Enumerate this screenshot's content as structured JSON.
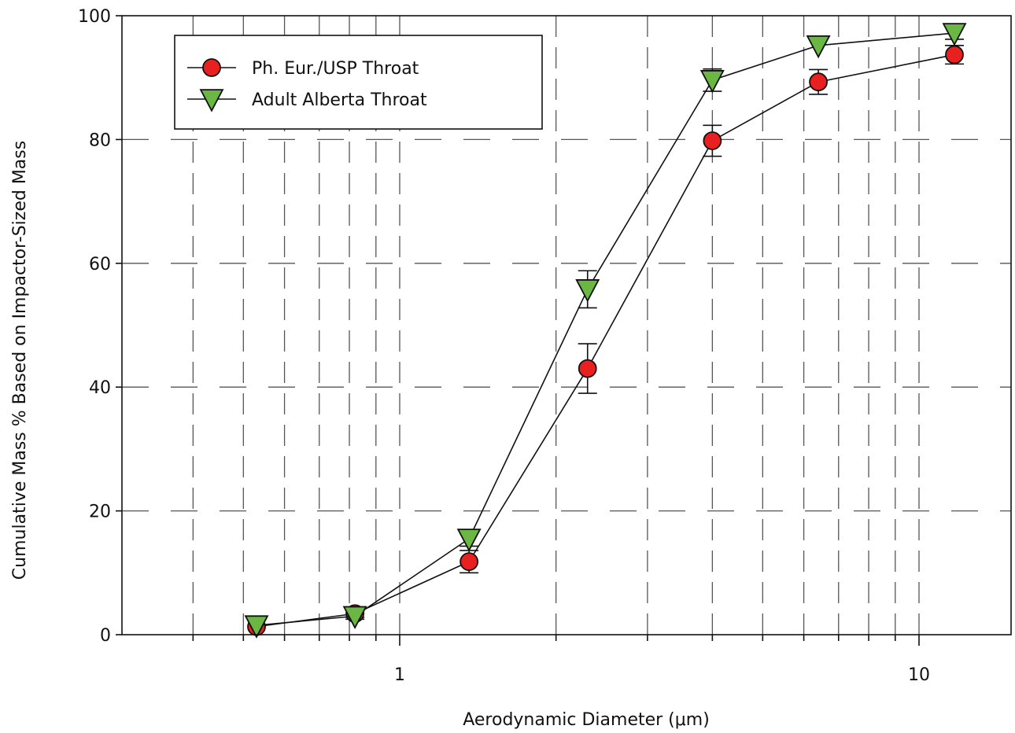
{
  "chart_data": {
    "type": "scatter",
    "xscale": "log",
    "xlim": [
      0.35,
      18
    ],
    "ylim": [
      0,
      100
    ],
    "xlabel": "Aerodynamic Diameter (μm)",
    "ylabel": "Cumulative Mass % Based on Impactor-Sized Mass",
    "xticks": [
      1,
      10
    ],
    "yticks": [
      0,
      20,
      40,
      60,
      80,
      100
    ],
    "grid": "on",
    "legend_position": "top-left",
    "series": [
      {
        "name": "Ph. Eur./USP Throat",
        "marker": "circle",
        "color": "#e8201f",
        "x": [
          0.53,
          0.82,
          1.36,
          2.3,
          4.0,
          6.4,
          11.7
        ],
        "y": [
          1.3,
          3.4,
          11.8,
          43.0,
          79.8,
          89.3,
          93.7
        ],
        "err": [
          0,
          0.6,
          1.8,
          4.0,
          2.5,
          2.0,
          1.5
        ]
      },
      {
        "name": "Adult Alberta Throat",
        "marker": "triangle-down",
        "color": "#6ab744",
        "x": [
          0.53,
          0.82,
          1.36,
          2.3,
          4.0,
          6.4,
          11.7
        ],
        "y": [
          1.5,
          3.0,
          15.5,
          55.8,
          89.6,
          95.2,
          97.2
        ],
        "err": [
          0,
          0.5,
          1.2,
          3.0,
          1.8,
          0,
          1.0
        ]
      }
    ]
  }
}
